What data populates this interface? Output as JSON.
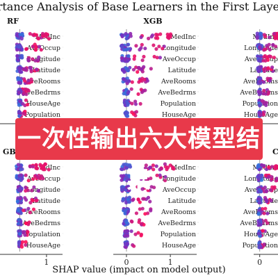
{
  "title": "...portance Analysis of Base Learners in the First Layer o...",
  "xlabel": "SHAP value (impact on model output)",
  "banner_text": "一次性输出六大模型结果",
  "colors": {
    "low": "#1e88e5",
    "high": "#ff0d57",
    "mid": "#7b2cbf",
    "banner": "#e8394a"
  },
  "chart_data": [
    {
      "type": "scatter",
      "title": "RF",
      "features": [
        "MedInc",
        "AveOccup",
        "Longitude",
        "Latitude",
        "AveRooms",
        "AveBedrms",
        "HouseAge",
        "Population"
      ],
      "xticks": [
        "1"
      ],
      "xlim": [
        -1.0,
        1.6
      ]
    },
    {
      "type": "scatter",
      "title": "XGB",
      "features": [
        "MedInc",
        "Longitude",
        "AveOccup",
        "Latitude",
        "AveRooms",
        "AveBedrms",
        "Population",
        "HouseAge"
      ],
      "xticks": [
        "0",
        "1"
      ],
      "xlim": [
        -0.3,
        1.6
      ]
    },
    {
      "type": "scatter",
      "title": "",
      "features": [
        "MedInc",
        "Longitude",
        "AveOccup",
        "Latitude",
        "AveRooms",
        "AveBedrms",
        "Population",
        "HouseAge"
      ],
      "xticks": [],
      "xlim": [
        -0.3,
        1.6
      ]
    },
    {
      "type": "scatter",
      "title": "GB",
      "features": [
        "MedInc",
        "AveOccup",
        "Longitude",
        "Latitude",
        "AveRooms",
        "AveBedrms",
        "Population",
        "HouseAge"
      ],
      "xticks": [
        "1"
      ],
      "xlim": [
        -1.0,
        1.6
      ]
    },
    {
      "type": "scatter",
      "title": "",
      "features": [
        "MedInc",
        "Longitude",
        "AveOccup",
        "Latitude",
        "AveRooms",
        "AveBedrms",
        "Population",
        "HouseAge"
      ],
      "xticks": [
        "0",
        "1"
      ],
      "xlim": [
        -0.3,
        1.6
      ]
    },
    {
      "type": "scatter",
      "title": "C",
      "features": [
        "MedInc",
        "Longitude",
        "AveOccup",
        "Latitude",
        "AveRooms",
        "AveBedrms",
        "HouseAge",
        "Population"
      ],
      "xticks": [
        "0"
      ],
      "xlim": [
        -0.3,
        1.6
      ]
    }
  ]
}
